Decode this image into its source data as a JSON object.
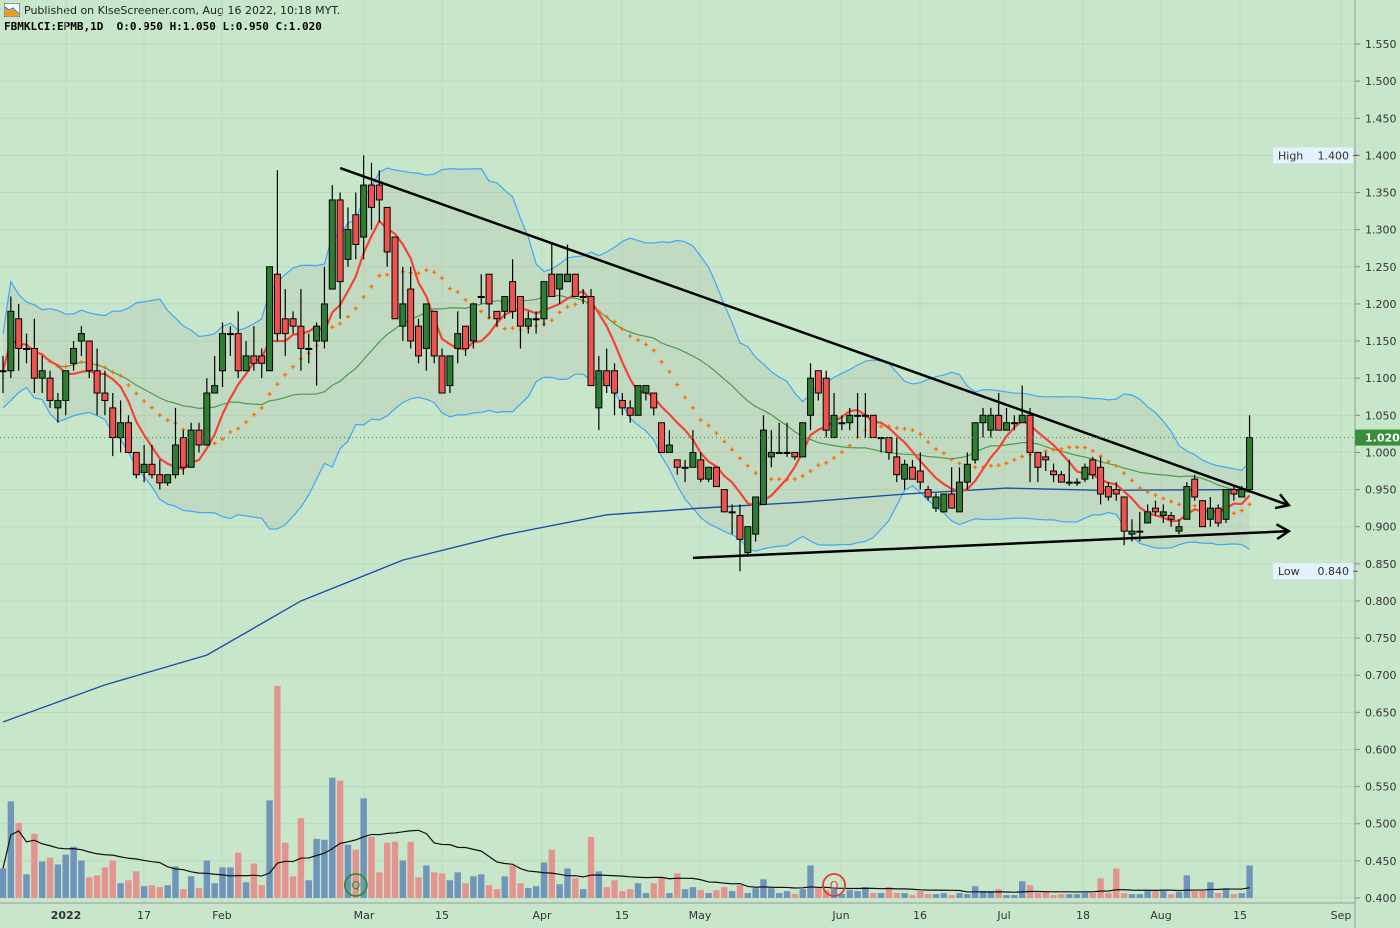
{
  "header": {
    "published": "Published on KlseScreener.com, Aug 16 2022, 10:18 MYT.",
    "symbol_line": "FBMKLCI:EPMB,1D  O:0.950 H:1.050 L:0.950 C:1.020"
  },
  "chart_data": {
    "type": "candlestick",
    "symbol": "FBMKLCI:EPMB",
    "interval": "1D",
    "ohlc_readout": {
      "open": 0.95,
      "high": 1.05,
      "low": 0.95,
      "close": 1.02
    },
    "ylim": [
      0.4,
      1.55
    ],
    "y_ticks": [
      "1.550",
      "1.500",
      "1.450",
      "1.400",
      "1.350",
      "1.300",
      "1.250",
      "1.200",
      "1.150",
      "1.100",
      "1.050",
      "1.000",
      "0.950",
      "0.900",
      "0.850",
      "0.800",
      "0.750",
      "0.700",
      "0.650",
      "0.600",
      "0.550",
      "0.500",
      "0.450",
      "0.400"
    ],
    "x_ticks": [
      "2022",
      "17",
      "Feb",
      "Mar",
      "15",
      "Apr",
      "15",
      "May",
      "Jun",
      "16",
      "Jul",
      "18",
      "Aug",
      "15",
      "Sep"
    ],
    "last_price": {
      "value": 1.02,
      "label": "1.020"
    },
    "high_marker": {
      "label": "High",
      "value": "1.400"
    },
    "low_marker": {
      "label": "Low",
      "value": "0.840"
    },
    "grid": true,
    "colors": {
      "background": "#c8e6c9",
      "up": "#2e7d32",
      "down": "#ef5350",
      "bollinger": "#42a5f5",
      "ma_fast": "#f44336",
      "ma_dots": "#ff6d00",
      "ma_mid": "#4c9a4c",
      "ma_long": "#1e4fa5",
      "volume_up": "#6f95bb",
      "volume_down": "#e3948f",
      "volume_ma": "#111111"
    },
    "candles": [
      [
        1.11,
        1.13,
        1.08,
        1.11
      ],
      [
        1.11,
        1.21,
        1.1,
        1.19
      ],
      [
        1.18,
        1.2,
        1.11,
        1.14
      ],
      [
        1.14,
        1.16,
        1.12,
        1.14
      ],
      [
        1.14,
        1.18,
        1.08,
        1.1
      ],
      [
        1.1,
        1.13,
        1.08,
        1.11
      ],
      [
        1.1,
        1.11,
        1.06,
        1.07
      ],
      [
        1.06,
        1.08,
        1.04,
        1.07
      ],
      [
        1.07,
        1.11,
        1.05,
        1.11
      ],
      [
        1.12,
        1.15,
        1.11,
        1.14
      ],
      [
        1.15,
        1.17,
        1.13,
        1.16
      ],
      [
        1.15,
        1.15,
        1.1,
        1.11
      ],
      [
        1.11,
        1.14,
        1.05,
        1.08
      ],
      [
        1.08,
        1.11,
        1.05,
        1.07
      ],
      [
        1.06,
        1.08,
        0.995,
        1.02
      ],
      [
        1.02,
        1.07,
        1.0,
        1.04
      ],
      [
        1.04,
        1.05,
        1.0,
        1.0
      ],
      [
        1.0,
        1.0,
        0.965,
        0.97
      ],
      [
        0.973,
        1.01,
        0.96,
        0.984
      ],
      [
        0.984,
        1.01,
        0.965,
        0.97
      ],
      [
        0.97,
        0.99,
        0.95,
        0.959
      ],
      [
        0.959,
        0.97,
        0.955,
        0.97
      ],
      [
        0.97,
        1.06,
        0.965,
        1.01
      ],
      [
        1.02,
        1.03,
        0.97,
        0.98
      ],
      [
        0.98,
        1.04,
        0.98,
        1.03
      ],
      [
        1.03,
        1.04,
        1.0,
        1.01
      ],
      [
        1.01,
        1.1,
        1.01,
        1.08
      ],
      [
        1.08,
        1.13,
        1.08,
        1.09
      ],
      [
        1.11,
        1.175,
        1.088,
        1.16
      ],
      [
        1.16,
        1.17,
        1.13,
        1.16
      ],
      [
        1.16,
        1.19,
        1.1,
        1.11
      ],
      [
        1.11,
        1.15,
        1.11,
        1.13
      ],
      [
        1.13,
        1.17,
        1.11,
        1.12
      ],
      [
        1.13,
        1.14,
        1.1,
        1.12
      ],
      [
        1.11,
        1.25,
        1.11,
        1.25
      ],
      [
        1.24,
        1.38,
        1.15,
        1.16
      ],
      [
        1.18,
        1.22,
        1.13,
        1.16
      ],
      [
        1.18,
        1.19,
        1.16,
        1.17
      ],
      [
        1.17,
        1.22,
        1.11,
        1.14
      ],
      [
        1.14,
        1.16,
        1.12,
        1.14
      ],
      [
        1.15,
        1.175,
        1.09,
        1.17
      ],
      [
        1.15,
        1.25,
        1.14,
        1.2
      ],
      [
        1.22,
        1.36,
        1.22,
        1.34
      ],
      [
        1.34,
        1.35,
        1.18,
        1.23
      ],
      [
        1.26,
        1.33,
        1.25,
        1.3
      ],
      [
        1.32,
        1.35,
        1.26,
        1.28
      ],
      [
        1.29,
        1.4,
        1.26,
        1.36
      ],
      [
        1.36,
        1.39,
        1.3,
        1.33
      ],
      [
        1.36,
        1.38,
        1.31,
        1.34
      ],
      [
        1.33,
        1.33,
        1.25,
        1.27
      ],
      [
        1.29,
        1.29,
        1.18,
        1.18
      ],
      [
        1.17,
        1.25,
        1.15,
        1.2
      ],
      [
        1.22,
        1.25,
        1.14,
        1.15
      ],
      [
        1.17,
        1.18,
        1.12,
        1.13
      ],
      [
        1.14,
        1.2,
        1.11,
        1.2
      ],
      [
        1.19,
        1.19,
        1.12,
        1.13
      ],
      [
        1.13,
        1.14,
        1.08,
        1.08
      ],
      [
        1.09,
        1.13,
        1.08,
        1.13
      ],
      [
        1.14,
        1.19,
        1.12,
        1.16
      ],
      [
        1.17,
        1.17,
        1.13,
        1.14
      ],
      [
        1.15,
        1.2,
        1.14,
        1.2
      ],
      [
        1.21,
        1.24,
        1.2,
        1.21
      ],
      [
        1.24,
        1.24,
        1.18,
        1.2
      ],
      [
        1.19,
        1.19,
        1.17,
        1.18
      ],
      [
        1.19,
        1.21,
        1.18,
        1.21
      ],
      [
        1.23,
        1.26,
        1.18,
        1.19
      ],
      [
        1.21,
        1.21,
        1.14,
        1.17
      ],
      [
        1.17,
        1.19,
        1.16,
        1.18
      ],
      [
        1.18,
        1.19,
        1.16,
        1.18
      ],
      [
        1.18,
        1.23,
        1.17,
        1.23
      ],
      [
        1.24,
        1.28,
        1.21,
        1.21
      ],
      [
        1.22,
        1.24,
        1.2,
        1.24
      ],
      [
        1.23,
        1.28,
        1.23,
        1.24
      ],
      [
        1.24,
        1.24,
        1.21,
        1.21
      ],
      [
        1.21,
        1.22,
        1.2,
        1.21
      ],
      [
        1.21,
        1.22,
        1.09,
        1.09
      ],
      [
        1.06,
        1.13,
        1.03,
        1.11
      ],
      [
        1.11,
        1.14,
        1.08,
        1.09
      ],
      [
        1.11,
        1.12,
        1.05,
        1.08
      ],
      [
        1.07,
        1.08,
        1.05,
        1.06
      ],
      [
        1.06,
        1.07,
        1.04,
        1.05
      ],
      [
        1.05,
        1.09,
        1.05,
        1.09
      ],
      [
        1.08,
        1.09,
        1.07,
        1.09
      ],
      [
        1.08,
        1.08,
        1.05,
        1.06
      ],
      [
        1.04,
        1.04,
        1.0,
        1.0
      ],
      [
        1.0,
        1.03,
        1.0,
        1.01
      ],
      [
        0.99,
        0.99,
        0.97,
        0.98
      ],
      [
        0.98,
        0.99,
        0.96,
        0.98
      ],
      [
        0.98,
        1.03,
        0.98,
        1.0
      ],
      [
        0.99,
        1.0,
        0.96,
        0.964
      ],
      [
        0.964,
        0.98,
        0.96,
        0.98
      ],
      [
        0.98,
        0.98,
        0.954,
        0.954
      ],
      [
        0.95,
        0.95,
        0.92,
        0.92
      ],
      [
        0.92,
        0.93,
        0.89,
        0.92
      ],
      [
        0.915,
        0.93,
        0.84,
        0.883
      ],
      [
        0.865,
        0.9,
        0.86,
        0.9
      ],
      [
        0.89,
        0.94,
        0.88,
        0.94
      ],
      [
        0.93,
        1.05,
        0.93,
        1.03
      ],
      [
        0.994,
        1.03,
        0.98,
        1.0
      ],
      [
        1.0,
        1.04,
        1.0,
        1.0
      ],
      [
        1.0,
        1.04,
        0.994,
        1.0
      ],
      [
        1.0,
        1.0,
        0.99,
        0.994
      ],
      [
        0.994,
        1.04,
        0.994,
        1.04
      ],
      [
        1.05,
        1.12,
        1.03,
        1.1
      ],
      [
        1.11,
        1.11,
        1.07,
        1.08
      ],
      [
        1.1,
        1.11,
        1.02,
        1.03
      ],
      [
        1.02,
        1.08,
        1.02,
        1.05
      ],
      [
        1.04,
        1.05,
        1.03,
        1.04
      ],
      [
        1.04,
        1.06,
        1.03,
        1.05
      ],
      [
        1.05,
        1.08,
        1.02,
        1.05
      ],
      [
        1.05,
        1.08,
        1.02,
        1.05
      ],
      [
        1.05,
        1.05,
        1.02,
        1.02
      ],
      [
        1.02,
        1.02,
        1.0,
        1.02
      ],
      [
        1.02,
        1.02,
        0.99,
        1.0
      ],
      [
        0.994,
        1.02,
        0.96,
        0.97
      ],
      [
        0.964,
        0.99,
        0.95,
        0.984
      ],
      [
        0.98,
        0.99,
        0.964,
        0.964
      ],
      [
        0.975,
        1.0,
        0.95,
        0.96
      ],
      [
        0.95,
        0.955,
        0.935,
        0.94
      ],
      [
        0.925,
        0.945,
        0.92,
        0.94
      ],
      [
        0.92,
        0.944,
        0.92,
        0.944
      ],
      [
        0.944,
        0.98,
        0.925,
        0.925
      ],
      [
        0.92,
        0.98,
        0.92,
        0.96
      ],
      [
        0.96,
        1.0,
        0.95,
        0.984
      ],
      [
        0.99,
        1.04,
        0.985,
        1.04
      ],
      [
        1.04,
        1.06,
        1.02,
        1.05
      ],
      [
        1.03,
        1.06,
        1.02,
        1.05
      ],
      [
        1.05,
        1.08,
        1.03,
        1.03
      ],
      [
        1.03,
        1.06,
        1.03,
        1.04
      ],
      [
        1.04,
        1.05,
        1.03,
        1.04
      ],
      [
        1.04,
        1.09,
        1.04,
        1.05
      ],
      [
        1.05,
        1.06,
        0.96,
        1.0
      ],
      [
        1.0,
        1.0,
        0.96,
        0.98
      ],
      [
        0.994,
        1.0,
        0.975,
        0.99
      ],
      [
        0.975,
        0.985,
        0.96,
        0.97
      ],
      [
        0.97,
        0.975,
        0.96,
        0.96
      ],
      [
        0.96,
        0.99,
        0.955,
        0.96
      ],
      [
        0.96,
        0.965,
        0.955,
        0.96
      ],
      [
        0.964,
        0.985,
        0.96,
        0.98
      ],
      [
        0.99,
        0.994,
        0.964,
        0.97
      ],
      [
        0.98,
        0.994,
        0.93,
        0.944
      ],
      [
        0.954,
        0.96,
        0.935,
        0.94
      ],
      [
        0.95,
        0.96,
        0.935,
        0.944
      ],
      [
        0.94,
        0.94,
        0.875,
        0.894
      ],
      [
        0.89,
        0.91,
        0.88,
        0.894
      ],
      [
        0.894,
        0.92,
        0.88,
        0.894
      ],
      [
        0.905,
        0.93,
        0.905,
        0.92
      ],
      [
        0.925,
        0.935,
        0.915,
        0.92
      ],
      [
        0.915,
        0.93,
        0.905,
        0.92
      ],
      [
        0.915,
        0.92,
        0.9,
        0.91
      ],
      [
        0.894,
        0.91,
        0.89,
        0.9
      ],
      [
        0.91,
        0.96,
        0.91,
        0.954
      ],
      [
        0.964,
        0.97,
        0.935,
        0.94
      ],
      [
        0.935,
        0.935,
        0.9,
        0.9
      ],
      [
        0.91,
        0.94,
        0.9,
        0.925
      ],
      [
        0.925,
        0.93,
        0.9,
        0.905
      ],
      [
        0.91,
        0.95,
        0.905,
        0.95
      ],
      [
        0.95,
        0.955,
        0.935,
        0.944
      ],
      [
        0.94,
        0.955,
        0.94,
        0.95
      ],
      [
        0.95,
        1.05,
        0.95,
        1.02
      ]
    ],
    "volume_relative": [
      30,
      98,
      76,
      24,
      65,
      37,
      41,
      34,
      44,
      52,
      38,
      21,
      23,
      31,
      38,
      15,
      18,
      27,
      12,
      13,
      11,
      13,
      32,
      9,
      22,
      10,
      38,
      15,
      31,
      31,
      46,
      16,
      35,
      13,
      99,
      215,
      56,
      22,
      81,
      18,
      60,
      59,
      122,
      119,
      54,
      49,
      101,
      62,
      26,
      56,
      57,
      38,
      57,
      21,
      33,
      26,
      25,
      18,
      26,
      15,
      22,
      24,
      13,
      9,
      22,
      33,
      15,
      10,
      12,
      36,
      49,
      14,
      30,
      20,
      9,
      62,
      27,
      11,
      18,
      7,
      9,
      15,
      5,
      15,
      21,
      5,
      25,
      9,
      11,
      8,
      5,
      8,
      11,
      7,
      13,
      5,
      10,
      19,
      10,
      5,
      7,
      4,
      9,
      33,
      10,
      8,
      9,
      4,
      8,
      7,
      11,
      5,
      5,
      11,
      5,
      5,
      3,
      7,
      4,
      4,
      5,
      3,
      5,
      4,
      12,
      7,
      7,
      9,
      3,
      3,
      17,
      13,
      5,
      7,
      3,
      4,
      4,
      4,
      5,
      5,
      20,
      5,
      30,
      5,
      4,
      4,
      7,
      7,
      7,
      4,
      6,
      23,
      7,
      7,
      16,
      5,
      10,
      4,
      5,
      33
    ],
    "ma_long": [
      [
        0,
        0.637
      ],
      [
        13,
        0.687
      ],
      [
        26,
        0.727
      ],
      [
        38,
        0.8
      ],
      [
        51,
        0.855
      ],
      [
        64,
        0.889
      ],
      [
        77,
        0.916
      ],
      [
        89,
        0.925
      ],
      [
        102,
        0.933
      ],
      [
        115,
        0.944
      ],
      [
        128,
        0.952
      ],
      [
        140,
        0.949
      ],
      [
        159,
        0.95
      ]
    ],
    "trendlines": [
      {
        "from": [
          43,
          1.383
        ],
        "to": [
          164,
          0.929
        ],
        "arrow": true
      },
      {
        "from": [
          88,
          0.858
        ],
        "to": [
          164,
          0.894
        ],
        "arrow": true
      }
    ],
    "markers": [
      {
        "label": "Q",
        "index": 45,
        "color": "#2e8b2e"
      },
      {
        "label": "Q",
        "index": 106,
        "color": "#e53935"
      }
    ]
  }
}
